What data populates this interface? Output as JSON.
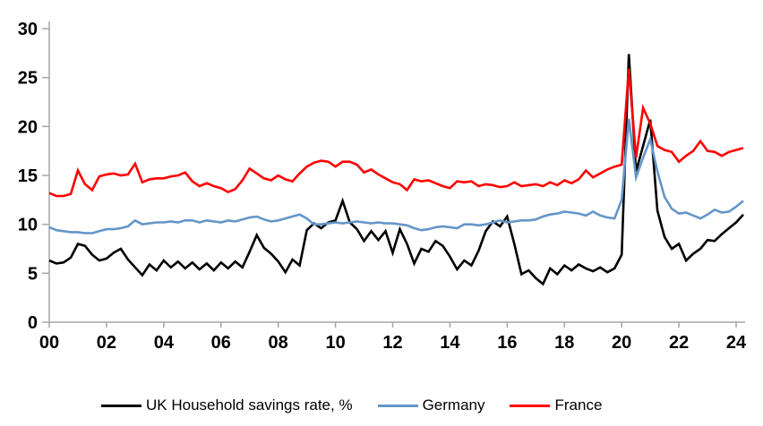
{
  "chart_data": {
    "type": "line",
    "frequency": "quarterly",
    "x_start_year": 2000,
    "x_step_years": 0.25,
    "grid": false,
    "legend_position": "bottom",
    "axis_color": "#a6a6a6",
    "text_color": "#000000",
    "background_color": "#ffffff",
    "x_axis": {
      "tick_labels": [
        "00",
        "02",
        "04",
        "06",
        "08",
        "10",
        "12",
        "14",
        "16",
        "18",
        "20",
        "22",
        "24"
      ],
      "years_per_tick": 2
    },
    "y_axis": {
      "min": 0,
      "max": 30,
      "tick_step": 5,
      "tick_labels": [
        "0",
        "5",
        "10",
        "15",
        "20",
        "25",
        "30"
      ]
    },
    "series": [
      {
        "id": "uk",
        "name": "UK Household savings rate, %",
        "color": "#000000",
        "values": [
          6.3,
          6.0,
          6.1,
          6.6,
          8.0,
          7.8,
          6.9,
          6.3,
          6.5,
          7.1,
          7.5,
          6.4,
          5.6,
          4.8,
          5.9,
          5.3,
          6.3,
          5.6,
          6.2,
          5.5,
          6.1,
          5.4,
          6.0,
          5.3,
          6.1,
          5.5,
          6.2,
          5.6,
          7.2,
          8.9,
          7.6,
          7.0,
          6.2,
          5.1,
          6.4,
          5.8,
          9.4,
          10.1,
          9.6,
          10.2,
          10.4,
          12.4,
          10.2,
          9.5,
          8.3,
          9.3,
          8.4,
          9.3,
          7.1,
          9.5,
          8.0,
          6.0,
          7.5,
          7.2,
          8.3,
          7.8,
          6.7,
          5.4,
          6.3,
          5.8,
          7.3,
          9.3,
          10.3,
          9.8,
          10.8,
          8.0,
          4.9,
          5.3,
          4.5,
          3.9,
          5.5,
          4.9,
          5.8,
          5.3,
          5.9,
          5.5,
          5.2,
          5.6,
          5.1,
          5.5,
          6.9,
          27.4,
          15.4,
          18.0,
          20.7,
          11.4,
          8.7,
          7.5,
          8.0,
          6.3,
          7.0,
          7.5,
          8.4,
          8.3,
          9.0,
          9.6,
          10.2,
          11.0
        ]
      },
      {
        "id": "germany",
        "name": "Germany",
        "color": "#6496c8",
        "values": [
          9.7,
          9.4,
          9.3,
          9.2,
          9.2,
          9.1,
          9.1,
          9.3,
          9.5,
          9.5,
          9.6,
          9.8,
          10.4,
          10.0,
          10.1,
          10.2,
          10.2,
          10.3,
          10.2,
          10.4,
          10.4,
          10.2,
          10.4,
          10.3,
          10.2,
          10.4,
          10.3,
          10.5,
          10.7,
          10.8,
          10.5,
          10.3,
          10.4,
          10.6,
          10.8,
          11.0,
          10.6,
          10.0,
          10.0,
          10.1,
          10.2,
          10.1,
          10.2,
          10.3,
          10.2,
          10.1,
          10.2,
          10.1,
          10.1,
          10.0,
          9.9,
          9.6,
          9.4,
          9.5,
          9.7,
          9.8,
          9.7,
          9.6,
          10.0,
          10.0,
          9.9,
          10.0,
          10.2,
          10.4,
          10.2,
          10.3,
          10.4,
          10.4,
          10.5,
          10.8,
          11.0,
          11.1,
          11.3,
          11.2,
          11.1,
          10.9,
          11.3,
          10.9,
          10.7,
          10.6,
          12.5,
          20.8,
          14.8,
          16.8,
          18.7,
          15.4,
          12.8,
          11.6,
          11.1,
          11.2,
          10.9,
          10.6,
          11.0,
          11.5,
          11.2,
          11.3,
          11.8,
          12.4
        ]
      },
      {
        "id": "france",
        "name": "France",
        "color": "#ff0000",
        "values": [
          13.2,
          12.9,
          12.9,
          13.1,
          15.5,
          14.1,
          13.5,
          14.9,
          15.1,
          15.2,
          15.0,
          15.1,
          16.2,
          14.3,
          14.6,
          14.7,
          14.7,
          14.9,
          15.0,
          15.3,
          14.4,
          13.9,
          14.2,
          13.9,
          13.7,
          13.3,
          13.6,
          14.5,
          15.7,
          15.2,
          14.7,
          14.5,
          15.0,
          14.6,
          14.4,
          15.2,
          15.9,
          16.3,
          16.5,
          16.4,
          15.9,
          16.4,
          16.4,
          16.1,
          15.3,
          15.6,
          15.1,
          14.7,
          14.3,
          14.1,
          13.5,
          14.6,
          14.4,
          14.5,
          14.2,
          13.9,
          13.7,
          14.4,
          14.3,
          14.4,
          13.9,
          14.1,
          14.0,
          13.8,
          13.9,
          14.3,
          13.9,
          14.0,
          14.1,
          13.9,
          14.3,
          14.0,
          14.5,
          14.2,
          14.6,
          15.5,
          14.8,
          15.2,
          15.6,
          15.9,
          16.1,
          25.9,
          16.8,
          21.9,
          20.3,
          18.0,
          17.6,
          17.4,
          16.4,
          17.0,
          17.5,
          18.5,
          17.5,
          17.4,
          17.0,
          17.4,
          17.6,
          17.8
        ]
      }
    ]
  }
}
